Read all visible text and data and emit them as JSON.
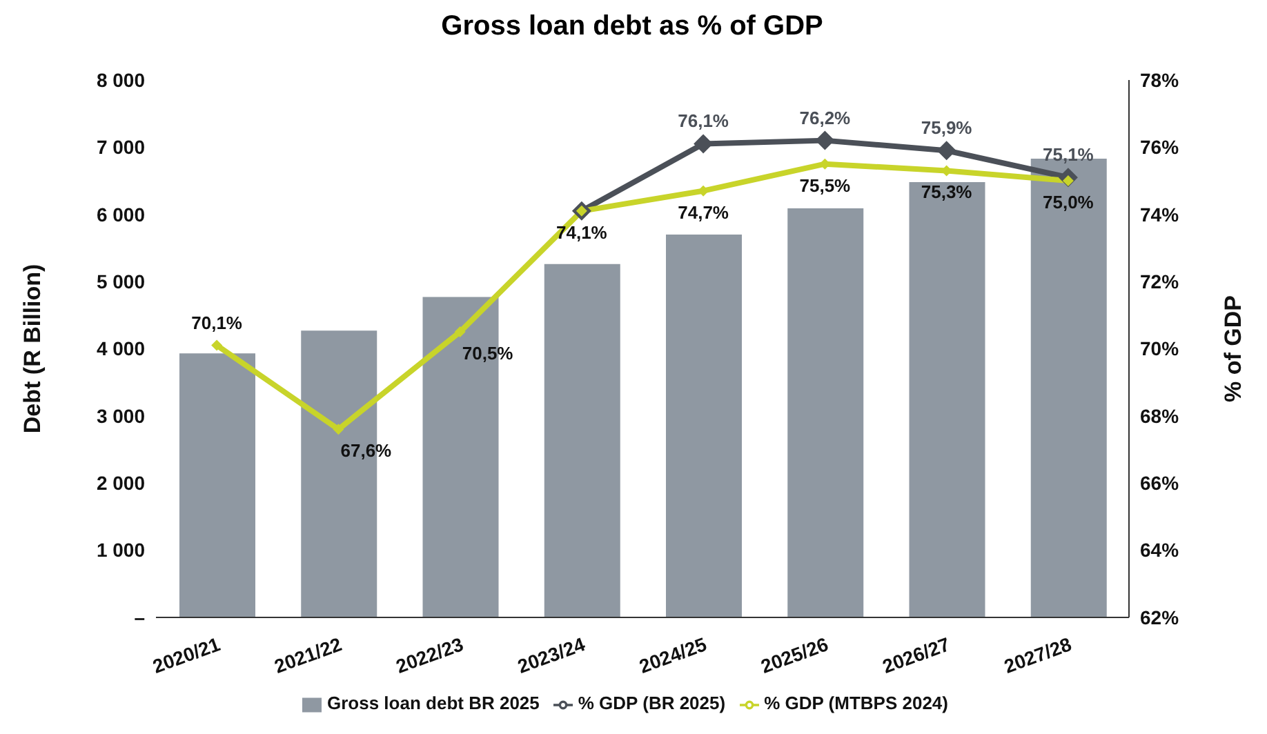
{
  "chart_data": {
    "type": "bar",
    "title": "Gross loan debt as % of GDP",
    "ylabel": "Debt (R Billion)",
    "y2label": "% of GDP",
    "categories": [
      "2020/21",
      "2021/22",
      "2022/23",
      "2023/24",
      "2024/25",
      "2025/26",
      "2026/27",
      "2027/28"
    ],
    "series": [
      {
        "name": "Gross loan debt BR 2025",
        "color": "#8f98a2",
        "values": [
          3930,
          4270,
          4770,
          5260,
          5700,
          6090,
          6480,
          6830
        ]
      },
      {
        "name": "% GDP (BR 2025)",
        "type": "line",
        "axis": "y2",
        "color": "#4b5058",
        "values": [
          null,
          null,
          null,
          74.1,
          76.1,
          76.2,
          75.9,
          75.1
        ],
        "value_labels": [
          null,
          null,
          null,
          null,
          "76,1%",
          "76,2%",
          "75,9%",
          "75,1%"
        ]
      },
      {
        "name": "% GDP (MTBPS 2024)",
        "type": "line",
        "axis": "y2",
        "color": "#c8d42a",
        "values": [
          70.1,
          67.6,
          70.5,
          74.1,
          74.7,
          75.5,
          75.3,
          75.0
        ],
        "value_labels": [
          "70,1%",
          "67,6%",
          "70,5%",
          "74,1%",
          "74,7%",
          "75,5%",
          "75,3%",
          "75,0%"
        ]
      }
    ],
    "ylim": [
      0,
      8000
    ],
    "yticks": [
      {
        "value": 0,
        "label": "–"
      },
      {
        "value": 1000,
        "label": "1 000"
      },
      {
        "value": 2000,
        "label": "2 000"
      },
      {
        "value": 3000,
        "label": "3 000"
      },
      {
        "value": 4000,
        "label": "4 000"
      },
      {
        "value": 5000,
        "label": "5 000"
      },
      {
        "value": 6000,
        "label": "6 000"
      },
      {
        "value": 7000,
        "label": "7 000"
      },
      {
        "value": 8000,
        "label": "8 000"
      }
    ],
    "y2lim": [
      62,
      78
    ],
    "y2ticks": [
      {
        "value": 62,
        "label": "62%"
      },
      {
        "value": 64,
        "label": "64%"
      },
      {
        "value": 66,
        "label": "66%"
      },
      {
        "value": 68,
        "label": "68%"
      },
      {
        "value": 70,
        "label": "70%"
      },
      {
        "value": 72,
        "label": "72%"
      },
      {
        "value": 74,
        "label": "74%"
      },
      {
        "value": 76,
        "label": "76%"
      },
      {
        "value": 78,
        "label": "78%"
      }
    ],
    "marker": "diamond",
    "line_style": "solid",
    "grid": false,
    "legend": "bottom"
  }
}
